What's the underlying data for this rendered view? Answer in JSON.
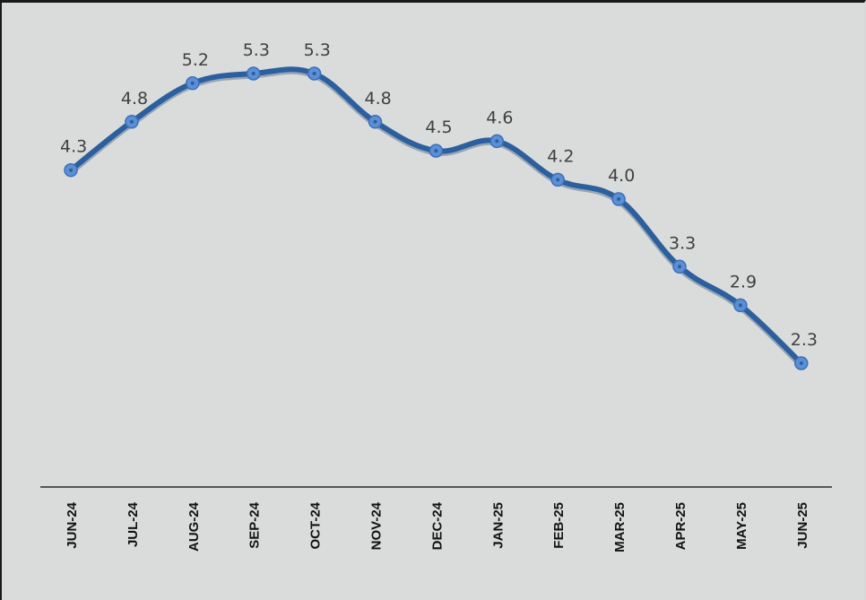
{
  "chart_data": {
    "type": "line",
    "title": "",
    "xlabel": "",
    "ylabel": "",
    "categories": [
      "JUN-24",
      "JUL-24",
      "AUG-24",
      "SEP-24",
      "OCT-24",
      "NOV-24",
      "DEC-24",
      "JAN-25",
      "FEB-25",
      "MAR-25",
      "APR-25",
      "MAY-25",
      "JUN-25"
    ],
    "series": [
      {
        "values": [
          4.3,
          4.8,
          5.2,
          5.3,
          5.3,
          4.8,
          4.5,
          4.6,
          4.2,
          4.0,
          3.3,
          2.9,
          2.3
        ],
        "data_labels": [
          "4.3",
          "4.8",
          "5.2",
          "5.3",
          "5.3",
          "4.8",
          "4.5",
          "4.6",
          "4.2",
          "4.0",
          "3.3",
          "2.9",
          "2.3"
        ],
        "color": "#2c5f9e",
        "marker_color": "#5b8fd6"
      }
    ],
    "ylim": [
      0.3,
      6
    ],
    "grid": false,
    "legend": "none",
    "smooth": true,
    "background_color": "#dadcdc",
    "axis_color": "#2a2a2a"
  }
}
